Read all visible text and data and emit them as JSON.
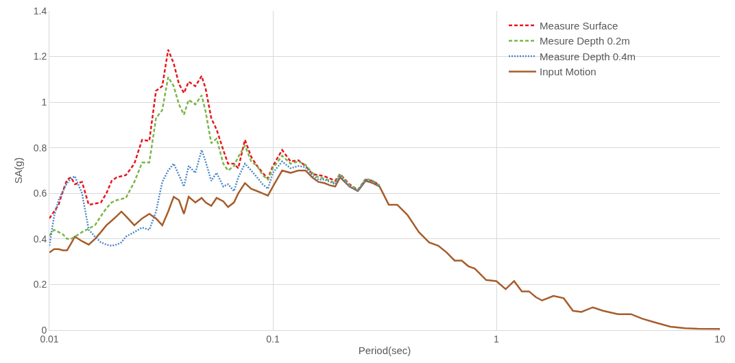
{
  "chart_data": {
    "type": "line",
    "xlabel": "Period(sec)",
    "ylabel": "SA(g)",
    "log": "x",
    "grid": true,
    "legend": "top right",
    "marker": "none",
    "xlim": [
      0.01,
      10
    ],
    "xticks": [
      0.01,
      0.1,
      1,
      10
    ],
    "ylim": [
      0,
      1.4
    ],
    "yticks": [
      0,
      0.2,
      0.4,
      0.6,
      0.8,
      1,
      1.2,
      1.4
    ],
    "x": [
      0.01,
      0.0105,
      0.011,
      0.0115,
      0.012,
      0.0125,
      0.013,
      0.014,
      0.015,
      0.016,
      0.017,
      0.018,
      0.019,
      0.02,
      0.021,
      0.022,
      0.024,
      0.026,
      0.028,
      0.03,
      0.032,
      0.034,
      0.036,
      0.038,
      0.04,
      0.042,
      0.045,
      0.048,
      0.05,
      0.053,
      0.056,
      0.06,
      0.063,
      0.067,
      0.07,
      0.075,
      0.08,
      0.085,
      0.09,
      0.095,
      0.1,
      0.11,
      0.12,
      0.13,
      0.14,
      0.15,
      0.16,
      0.17,
      0.18,
      0.19,
      0.2,
      0.22,
      0.24,
      0.26,
      0.28,
      0.3
    ],
    "series": [
      {
        "name": "Measure Surface",
        "color": "#e8141c",
        "line_style": "dashed",
        "values": [
          0.49,
          0.52,
          0.55,
          0.61,
          0.66,
          0.67,
          0.64,
          0.65,
          0.55,
          0.555,
          0.56,
          0.6,
          0.655,
          0.67,
          0.675,
          0.68,
          0.73,
          0.835,
          0.83,
          1.05,
          1.07,
          1.23,
          1.17,
          1.08,
          1.04,
          1.09,
          1.07,
          1.115,
          1.06,
          0.93,
          0.88,
          0.79,
          0.73,
          0.73,
          0.71,
          0.835,
          0.76,
          0.72,
          0.69,
          0.665,
          0.72,
          0.79,
          0.74,
          0.745,
          0.72,
          0.685,
          0.68,
          0.675,
          0.665,
          0.655,
          0.685,
          0.64,
          0.615,
          0.66,
          0.655,
          0.635
        ]
      },
      {
        "name": "Mesure Depth 0.2m",
        "color": "#7ab648",
        "line_style": "dashed",
        "values": [
          0.415,
          0.44,
          0.43,
          0.42,
          0.4,
          0.4,
          0.41,
          0.43,
          0.445,
          0.46,
          0.5,
          0.535,
          0.56,
          0.57,
          0.575,
          0.58,
          0.65,
          0.735,
          0.735,
          0.93,
          0.965,
          1.11,
          1.07,
          0.99,
          0.945,
          1.01,
          0.99,
          1.03,
          0.96,
          0.82,
          0.84,
          0.73,
          0.7,
          0.72,
          0.76,
          0.81,
          0.74,
          0.72,
          0.68,
          0.66,
          0.71,
          0.765,
          0.73,
          0.74,
          0.725,
          0.69,
          0.67,
          0.665,
          0.655,
          0.645,
          0.685,
          0.635,
          0.615,
          0.665,
          0.655,
          0.635
        ]
      },
      {
        "name": "Measure Depth 0.4m",
        "color": "#4a86c5",
        "line_style": "dotted",
        "values": [
          0.37,
          0.5,
          0.57,
          0.61,
          0.645,
          0.665,
          0.675,
          0.6,
          0.44,
          0.41,
          0.385,
          0.375,
          0.37,
          0.375,
          0.385,
          0.41,
          0.43,
          0.45,
          0.44,
          0.52,
          0.65,
          0.7,
          0.73,
          0.68,
          0.63,
          0.72,
          0.69,
          0.79,
          0.74,
          0.655,
          0.69,
          0.63,
          0.64,
          0.61,
          0.67,
          0.73,
          0.7,
          0.67,
          0.64,
          0.62,
          0.69,
          0.74,
          0.71,
          0.72,
          0.715,
          0.68,
          0.66,
          0.66,
          0.65,
          0.64,
          0.68,
          0.63,
          0.61,
          0.66,
          0.65,
          0.63
        ]
      },
      {
        "name": "Input Motion",
        "color": "#a65c2a",
        "line_style": "solid",
        "x": [
          0.01,
          0.0105,
          0.011,
          0.0115,
          0.012,
          0.0125,
          0.013,
          0.014,
          0.015,
          0.016,
          0.017,
          0.018,
          0.019,
          0.02,
          0.021,
          0.022,
          0.024,
          0.026,
          0.028,
          0.03,
          0.032,
          0.034,
          0.036,
          0.038,
          0.04,
          0.042,
          0.045,
          0.048,
          0.05,
          0.053,
          0.056,
          0.06,
          0.063,
          0.067,
          0.07,
          0.075,
          0.08,
          0.085,
          0.09,
          0.095,
          0.1,
          0.11,
          0.12,
          0.13,
          0.14,
          0.15,
          0.16,
          0.17,
          0.18,
          0.19,
          0.2,
          0.22,
          0.24,
          0.26,
          0.28,
          0.3,
          0.33,
          0.36,
          0.4,
          0.45,
          0.5,
          0.55,
          0.6,
          0.65,
          0.7,
          0.75,
          0.8,
          0.9,
          1,
          1.1,
          1.2,
          1.3,
          1.4,
          1.5,
          1.6,
          1.8,
          2,
          2.2,
          2.4,
          2.7,
          3,
          3.5,
          4,
          4.5,
          5,
          6,
          7,
          8,
          10
        ],
        "values": [
          0.34,
          0.355,
          0.355,
          0.35,
          0.35,
          0.38,
          0.41,
          0.39,
          0.375,
          0.4,
          0.43,
          0.46,
          0.48,
          0.5,
          0.52,
          0.5,
          0.46,
          0.49,
          0.51,
          0.49,
          0.46,
          0.52,
          0.585,
          0.57,
          0.51,
          0.585,
          0.56,
          0.58,
          0.56,
          0.545,
          0.58,
          0.565,
          0.54,
          0.56,
          0.6,
          0.645,
          0.62,
          0.61,
          0.6,
          0.59,
          0.63,
          0.7,
          0.69,
          0.7,
          0.7,
          0.67,
          0.65,
          0.645,
          0.635,
          0.63,
          0.67,
          0.63,
          0.61,
          0.655,
          0.645,
          0.63,
          0.55,
          0.55,
          0.505,
          0.43,
          0.385,
          0.37,
          0.34,
          0.305,
          0.305,
          0.28,
          0.27,
          0.22,
          0.215,
          0.18,
          0.215,
          0.17,
          0.17,
          0.145,
          0.13,
          0.15,
          0.14,
          0.085,
          0.08,
          0.1,
          0.085,
          0.07,
          0.07,
          0.05,
          0.037,
          0.015,
          0.008,
          0.006,
          0.005
        ]
      }
    ]
  }
}
